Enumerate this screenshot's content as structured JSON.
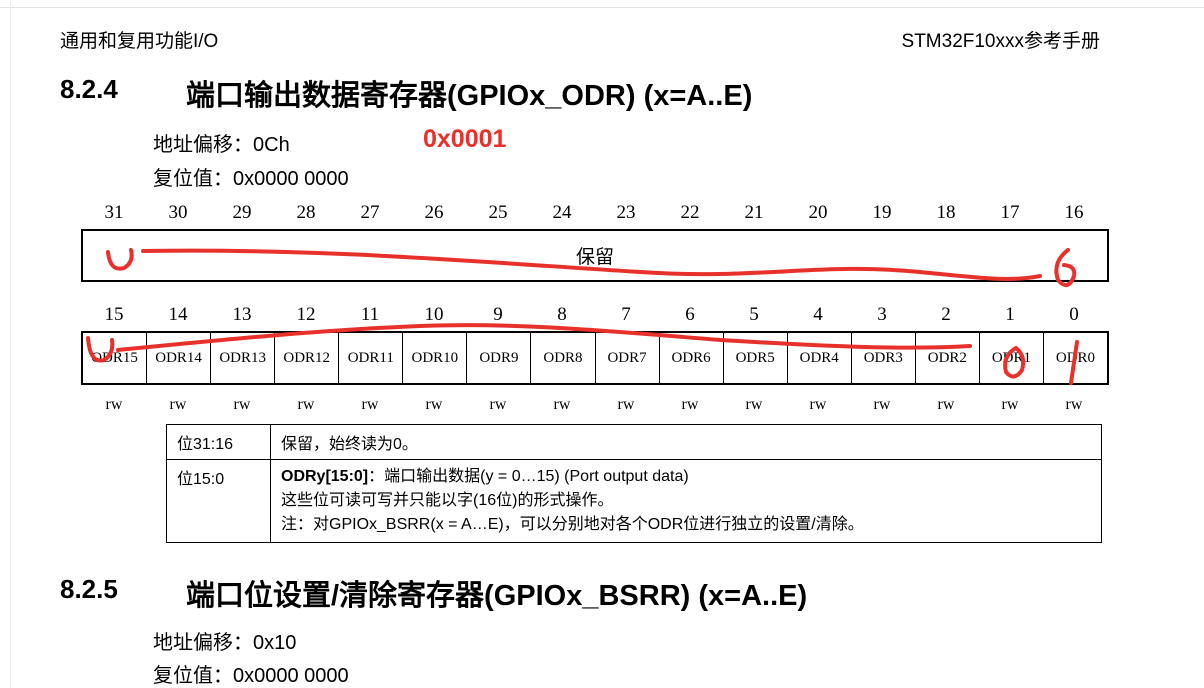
{
  "header": {
    "left": "通用和复用功能I/O",
    "right": "STM32F10xxx参考手册"
  },
  "section_824": {
    "number": "8.2.4",
    "title": "端口输出数据寄存器(GPIOx_ODR) (x=A..E)",
    "address_offset": "地址偏移：0Ch",
    "reset_value": "复位值：0x0000 0000",
    "annotation": "0x0001"
  },
  "register": {
    "high_bits": [
      "31",
      "30",
      "29",
      "28",
      "27",
      "26",
      "25",
      "24",
      "23",
      "22",
      "21",
      "20",
      "19",
      "18",
      "17",
      "16"
    ],
    "reserved_label": "保留",
    "low_bits": [
      "15",
      "14",
      "13",
      "12",
      "11",
      "10",
      "9",
      "8",
      "7",
      "6",
      "5",
      "4",
      "3",
      "2",
      "1",
      "0"
    ],
    "fields": [
      "ODR15",
      "ODR14",
      "ODR13",
      "ODR12",
      "ODR11",
      "ODR10",
      "ODR9",
      "ODR8",
      "ODR7",
      "ODR6",
      "ODR5",
      "ODR4",
      "ODR3",
      "ODR2",
      "ODR1",
      "ODR0"
    ],
    "access": [
      "rw",
      "rw",
      "rw",
      "rw",
      "rw",
      "rw",
      "rw",
      "rw",
      "rw",
      "rw",
      "rw",
      "rw",
      "rw",
      "rw",
      "rw",
      "rw"
    ]
  },
  "desc_table": {
    "row1": {
      "bits": "位31:16",
      "text": "保留，始终读为0。"
    },
    "row2": {
      "bits": "位15:0",
      "field": "ODRy[15:0]",
      "field_desc": "：端口输出数据(y = 0…15) (Port output data)",
      "line2": "这些位可读可写并只能以字(16位)的形式操作。",
      "line3": "注：对GPIOx_BSRR(x = A…E)，可以分别地对各个ODR位进行独立的设置/清除。"
    }
  },
  "section_825": {
    "number": "8.2.5",
    "title": "端口位设置/清除寄存器(GPIOx_BSRR) (x=A..E)",
    "address_offset": "地址偏移：0x10",
    "reset_value_partial": "复位值：0x0000 0000"
  },
  "ink_color": "#e8312a"
}
